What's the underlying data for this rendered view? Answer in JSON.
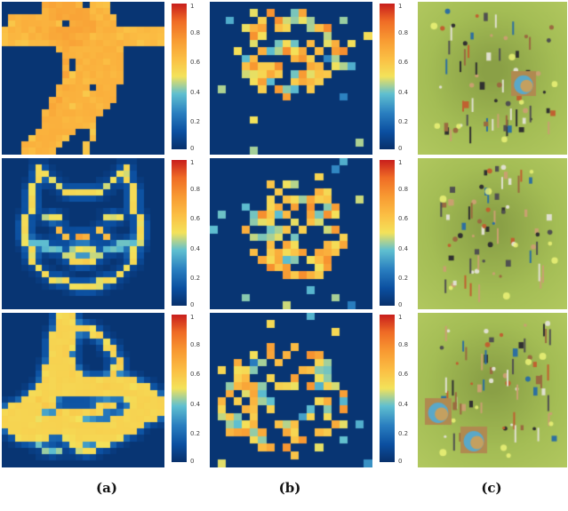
{
  "captions": [
    "(a)",
    "(b)",
    "(c)"
  ],
  "colorbar": {
    "ticks": [
      "1",
      "0.8",
      "0.6",
      "0.4",
      "0.2",
      "0"
    ],
    "colors": [
      "#08306b",
      "#0b4fa0",
      "#2a7fc0",
      "#5fbfd0",
      "#f3e25a",
      "#fbbf44",
      "#f89a32",
      "#ef6b25",
      "#c81e1c"
    ]
  },
  "rows": [
    {
      "subject": "bird"
    },
    {
      "subject": "cat"
    },
    {
      "subject": "laptop"
    }
  ]
}
